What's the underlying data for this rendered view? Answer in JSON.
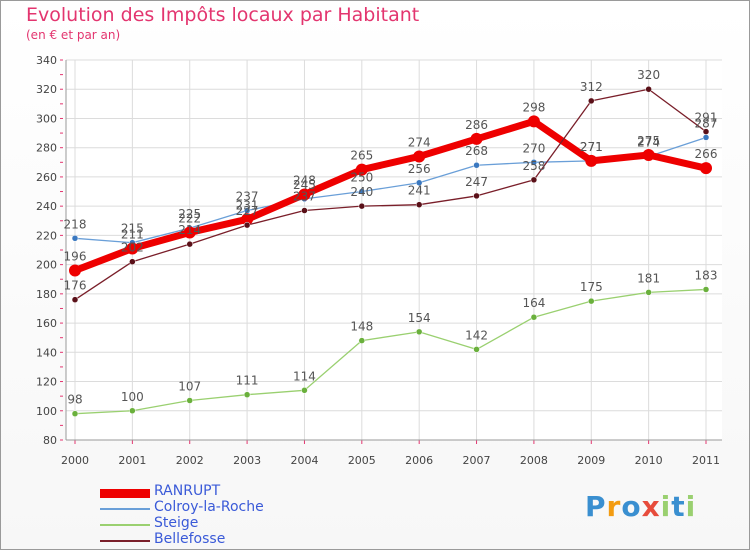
{
  "chart_data": {
    "type": "line",
    "title": "Evolution des Impôts locaux par Habitant",
    "subtitle": "(en € et par an)",
    "categories": [
      "2000",
      "2001",
      "2002",
      "2003",
      "2004",
      "2005",
      "2006",
      "2007",
      "2008",
      "2009",
      "2010",
      "2011"
    ],
    "ylim": [
      80,
      340
    ],
    "yticks": [
      80,
      100,
      120,
      140,
      160,
      180,
      200,
      220,
      240,
      260,
      280,
      300,
      320,
      340
    ],
    "grid": true,
    "series": [
      {
        "name": "RANRUPT",
        "color": "#ee0000",
        "values": [
          196,
          211,
          222,
          231,
          248,
          265,
          274,
          286,
          298,
          271,
          275,
          266
        ],
        "labels": [
          "196",
          "211",
          "222",
          "231",
          "248",
          "265",
          "274",
          "286",
          "298",
          "271",
          "275",
          "266"
        ]
      },
      {
        "name": "Colroy-la-Roche",
        "color": "#6a9fd8",
        "values": [
          218,
          215,
          225,
          237,
          245,
          250,
          256,
          268,
          270,
          271,
          274,
          287
        ],
        "labels": [
          "218",
          "215",
          "225",
          "237",
          "245",
          "250",
          "256",
          "268",
          "270",
          "271",
          "274",
          "287"
        ]
      },
      {
        "name": "Steige",
        "color": "#9ad070",
        "values": [
          98,
          100,
          107,
          111,
          114,
          148,
          154,
          142,
          164,
          175,
          181,
          183
        ],
        "labels": [
          "98",
          "100",
          "107",
          "111",
          "114",
          "148",
          "154",
          "142",
          "164",
          "175",
          "181",
          "183"
        ]
      },
      {
        "name": "Bellefosse",
        "color": "#7a1f2a",
        "values": [
          176,
          202,
          214,
          227,
          237,
          240,
          241,
          247,
          258,
          312,
          320,
          291
        ],
        "labels": [
          "176",
          "202",
          "214",
          "227",
          "237",
          "240",
          "241",
          "247",
          "258",
          "312",
          "320",
          "291"
        ]
      }
    ],
    "legend_position": "bottom-left"
  },
  "legend": [
    {
      "label": "RANRUPT",
      "color": "#ee0000"
    },
    {
      "label": "Colroy-la-Roche",
      "color": "#6a9fd8"
    },
    {
      "label": "Steige",
      "color": "#9ad070"
    },
    {
      "label": "Bellefosse",
      "color": "#7a1f2a"
    }
  ],
  "logo": {
    "letters": [
      "P",
      "r",
      "o",
      "x",
      "i",
      "t",
      "i"
    ],
    "colors": [
      "#3a8fd0",
      "#f39c12",
      "#3a8fd0",
      "#e74c3c",
      "#9ad070",
      "#3a8fd0",
      "#9ad070"
    ]
  }
}
